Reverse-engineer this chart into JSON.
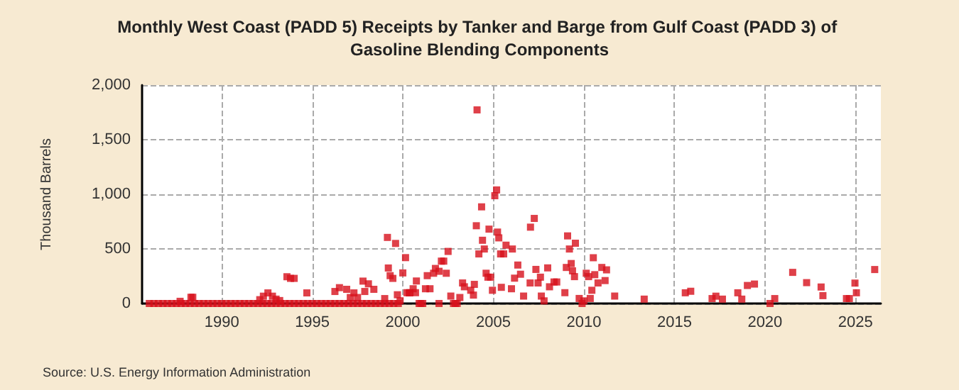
{
  "chart_data": {
    "type": "scatter",
    "title": "Monthly West Coast (PADD 5) Receipts by Tanker and Barge from Gulf Coast (PADD 3) of Gasoline Blending Components",
    "ylabel": "Thousand Barrels",
    "annotations": [
      "Source: U.S. Energy Information Administration"
    ],
    "x": [
      1986.0,
      1986.25,
      1986.5,
      1986.75,
      1987.0,
      1987.25,
      1987.5,
      1987.75,
      1988.0,
      1988.25,
      1988.5,
      1988.75,
      1989.0,
      1989.25,
      1989.5,
      1989.75,
      1990.0,
      1990.25,
      1990.5,
      1990.75,
      1991.0,
      1991.25,
      1991.5,
      1991.75,
      1992.0,
      1992.25,
      1992.5,
      1992.75,
      1993.0,
      1993.25,
      1993.5,
      1993.75,
      1994.0,
      1994.25,
      1994.5,
      1994.75,
      1995.0,
      1995.25,
      1995.5,
      1995.75,
      1996.0,
      1996.25,
      1996.5,
      1996.75,
      1997.0,
      1997.25,
      1997.5,
      1997.75,
      1998.0,
      1998.25,
      1998.5,
      1998.75,
      1999.0,
      1999.25,
      1999.5,
      1999.75,
      2000.9,
      2001.0,
      2001.1,
      2002.0,
      2002.8,
      2002.9,
      2003.0,
      2009.9,
      1987.7,
      1988.3,
      1988.4,
      1992.1,
      1992.3,
      1992.55,
      1992.8,
      1993.0,
      1993.2,
      1993.6,
      1993.8,
      1994.0,
      1994.7,
      1996.25,
      1996.5,
      1996.9,
      1997.1,
      1997.3,
      1997.5,
      1997.8,
      1997.9,
      1998.1,
      1998.4,
      1999.0,
      1999.15,
      1999.2,
      1999.3,
      1999.45,
      1999.6,
      1999.7,
      1999.85,
      2000.0,
      2000.15,
      2000.35,
      2000.23,
      2000.4,
      2000.57,
      2000.7,
      2000.75,
      2001.25,
      2001.35,
      2001.5,
      2001.7,
      2001.8,
      2002.0,
      2002.13,
      2002.26,
      2002.4,
      2002.5,
      2002.65,
      2003.15,
      2003.3,
      2003.4,
      2003.75,
      2003.9,
      2003.95,
      2004.06,
      2004.1,
      2004.2,
      2004.35,
      2004.4,
      2004.5,
      2004.6,
      2004.7,
      2004.76,
      2004.85,
      2004.95,
      2005.08,
      2005.18,
      2005.23,
      2005.3,
      2005.4,
      2005.44,
      2005.57,
      2005.7,
      2006.05,
      2006.0,
      2006.35,
      2006.17,
      2006.5,
      2006.67,
      2007.05,
      2007.03,
      2007.26,
      2007.35,
      2007.47,
      2007.6,
      2007.65,
      2007.8,
      2008.0,
      2008.1,
      2008.35,
      2008.5,
      2008.95,
      2009.03,
      2009.1,
      2009.2,
      2009.3,
      2009.37,
      2009.48,
      2009.53,
      2009.74,
      2010.0,
      2010.13,
      2010.26,
      2010.35,
      2010.44,
      2010.52,
      2010.6,
      2010.78,
      2010.99,
      2011.17,
      2011.25,
      2011.7,
      2013.33,
      2015.6,
      2015.9,
      2017.08,
      2017.29,
      2017.65,
      2018.5,
      2018.72,
      2019.03,
      2019.42,
      2020.28,
      2020.54,
      2021.53,
      2022.3,
      2023.1,
      2023.2,
      2024.5,
      2024.66,
      2024.97,
      2025.05,
      2026.06
    ],
    "series": [
      {
        "color": "#d7101c",
        "values": [
          0,
          0,
          0,
          0,
          0,
          0,
          0,
          0,
          0,
          0,
          0,
          0,
          0,
          0,
          0,
          0,
          0,
          0,
          0,
          0,
          0,
          0,
          0,
          0,
          0,
          0,
          0,
          0,
          0,
          0,
          0,
          0,
          0,
          0,
          0,
          0,
          0,
          0,
          0,
          0,
          0,
          0,
          0,
          0,
          0,
          0,
          0,
          0,
          0,
          0,
          0,
          0,
          0,
          0,
          0,
          0,
          0,
          0,
          0,
          0,
          0,
          0,
          0,
          0,
          20,
          57,
          57,
          35,
          67,
          97,
          67,
          40,
          27,
          245,
          230,
          230,
          97,
          110,
          145,
          130,
          55,
          97,
          55,
          205,
          110,
          180,
          130,
          45,
          605,
          325,
          255,
          230,
          550,
          80,
          25,
          280,
          420,
          97,
          99,
          99,
          135,
          99,
          206,
          135,
          255,
          135,
          277,
          321,
          295,
          388,
          388,
          277,
          477,
          68,
          55,
          188,
          153,
          121,
          77,
          175,
          712,
          1773,
          454,
          885,
          579,
          499,
          277,
          241,
          681,
          241,
          121,
          987,
          1040,
          654,
          601,
          454,
          148,
          454,
          534,
          499,
          135,
          352,
          232,
          268,
          68,
          699,
          188,
          779,
          312,
          188,
          241,
          68,
          24,
          326,
          153,
          197,
          197,
          99,
          330,
          619,
          499,
          366,
          299,
          246,
          552,
          46,
          24,
          277,
          246,
          46,
          121,
          419,
          264,
          188,
          330,
          210,
          308,
          68,
          40,
          98,
          112,
          45,
          67,
          40,
          98,
          40,
          165,
          178,
          0,
          45,
          285,
          191,
          151,
          72,
          45,
          45,
          187,
          98,
          311
        ]
      }
    ],
    "xlim": [
      1985.6,
      2026.4
    ],
    "xticks": [
      1990,
      1995,
      2000,
      2005,
      2010,
      2015,
      2020,
      2025
    ],
    "ylim": [
      0,
      2000
    ],
    "yticks": [
      0,
      500,
      {
        "value": 1000,
        "label": "1,000"
      },
      {
        "value": 1500,
        "label": "1,500"
      },
      {
        "value": 2000,
        "label": "2,000"
      }
    ],
    "grid": true,
    "marker": "square"
  }
}
